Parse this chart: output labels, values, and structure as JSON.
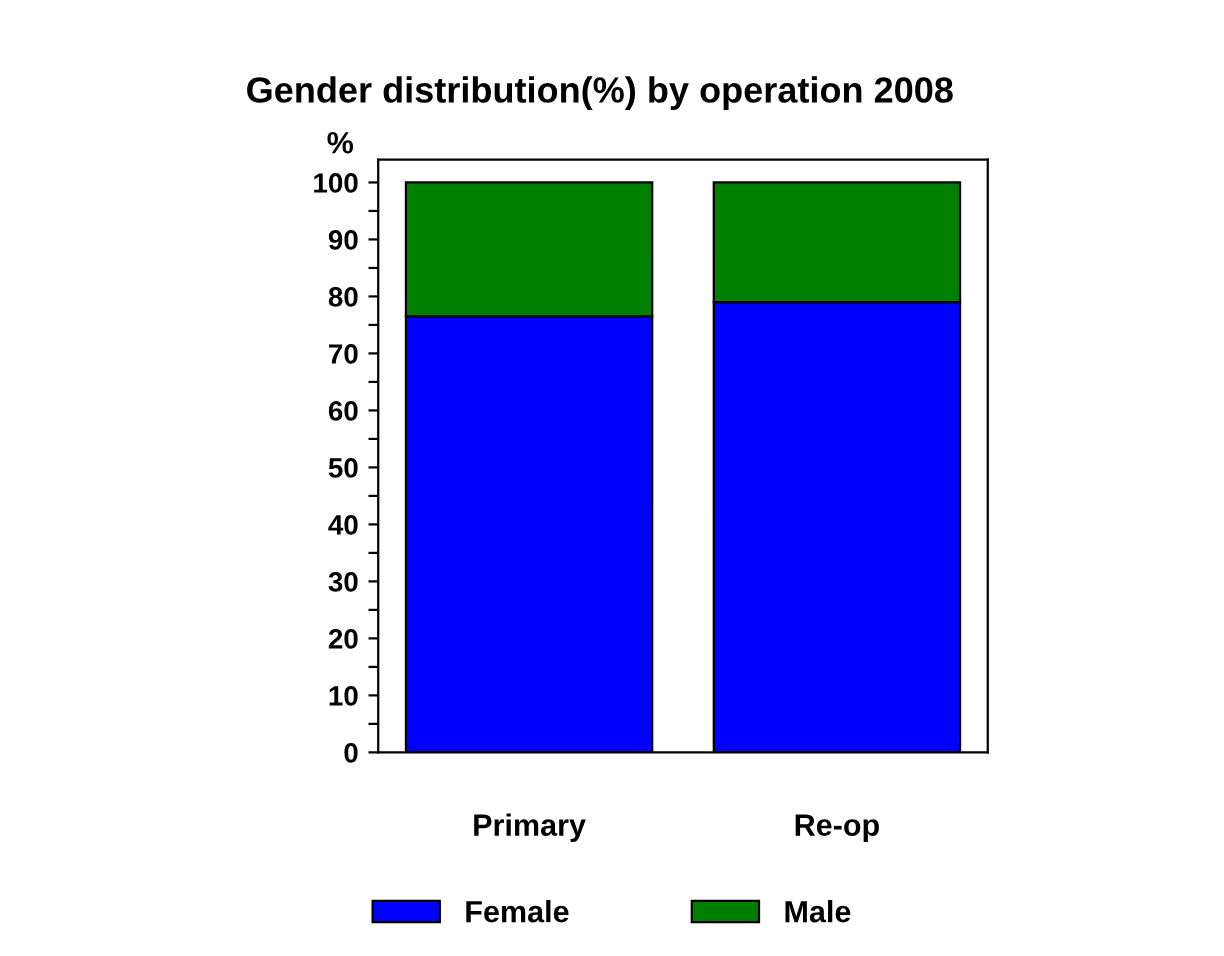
{
  "chart_data": {
    "type": "bar",
    "title": "Gender distribution(%) by operation 2008",
    "ylabel": "%",
    "categories": [
      "Primary",
      "Re-op"
    ],
    "stacked": true,
    "series": [
      {
        "name": "Female",
        "color": "#0000ff",
        "values": [
          76.5,
          79.0
        ]
      },
      {
        "name": "Male",
        "color": "#008000",
        "values": [
          23.5,
          21.0
        ]
      }
    ],
    "ylim": [
      0,
      104
    ],
    "yticks": [
      0,
      {
        "value": 5,
        "label": null
      },
      10,
      {
        "value": 15,
        "label": null
      },
      20,
      {
        "value": 25,
        "label": null
      },
      30,
      {
        "value": 35,
        "label": null
      },
      40,
      {
        "value": 45,
        "label": null
      },
      50,
      {
        "value": 55,
        "label": null
      },
      60,
      {
        "value": 65,
        "label": null
      },
      70,
      {
        "value": 75,
        "label": null
      },
      80,
      {
        "value": 85,
        "label": null
      },
      90,
      {
        "value": 95,
        "label": null
      },
      100
    ],
    "grid": false,
    "legend": "bottom"
  }
}
